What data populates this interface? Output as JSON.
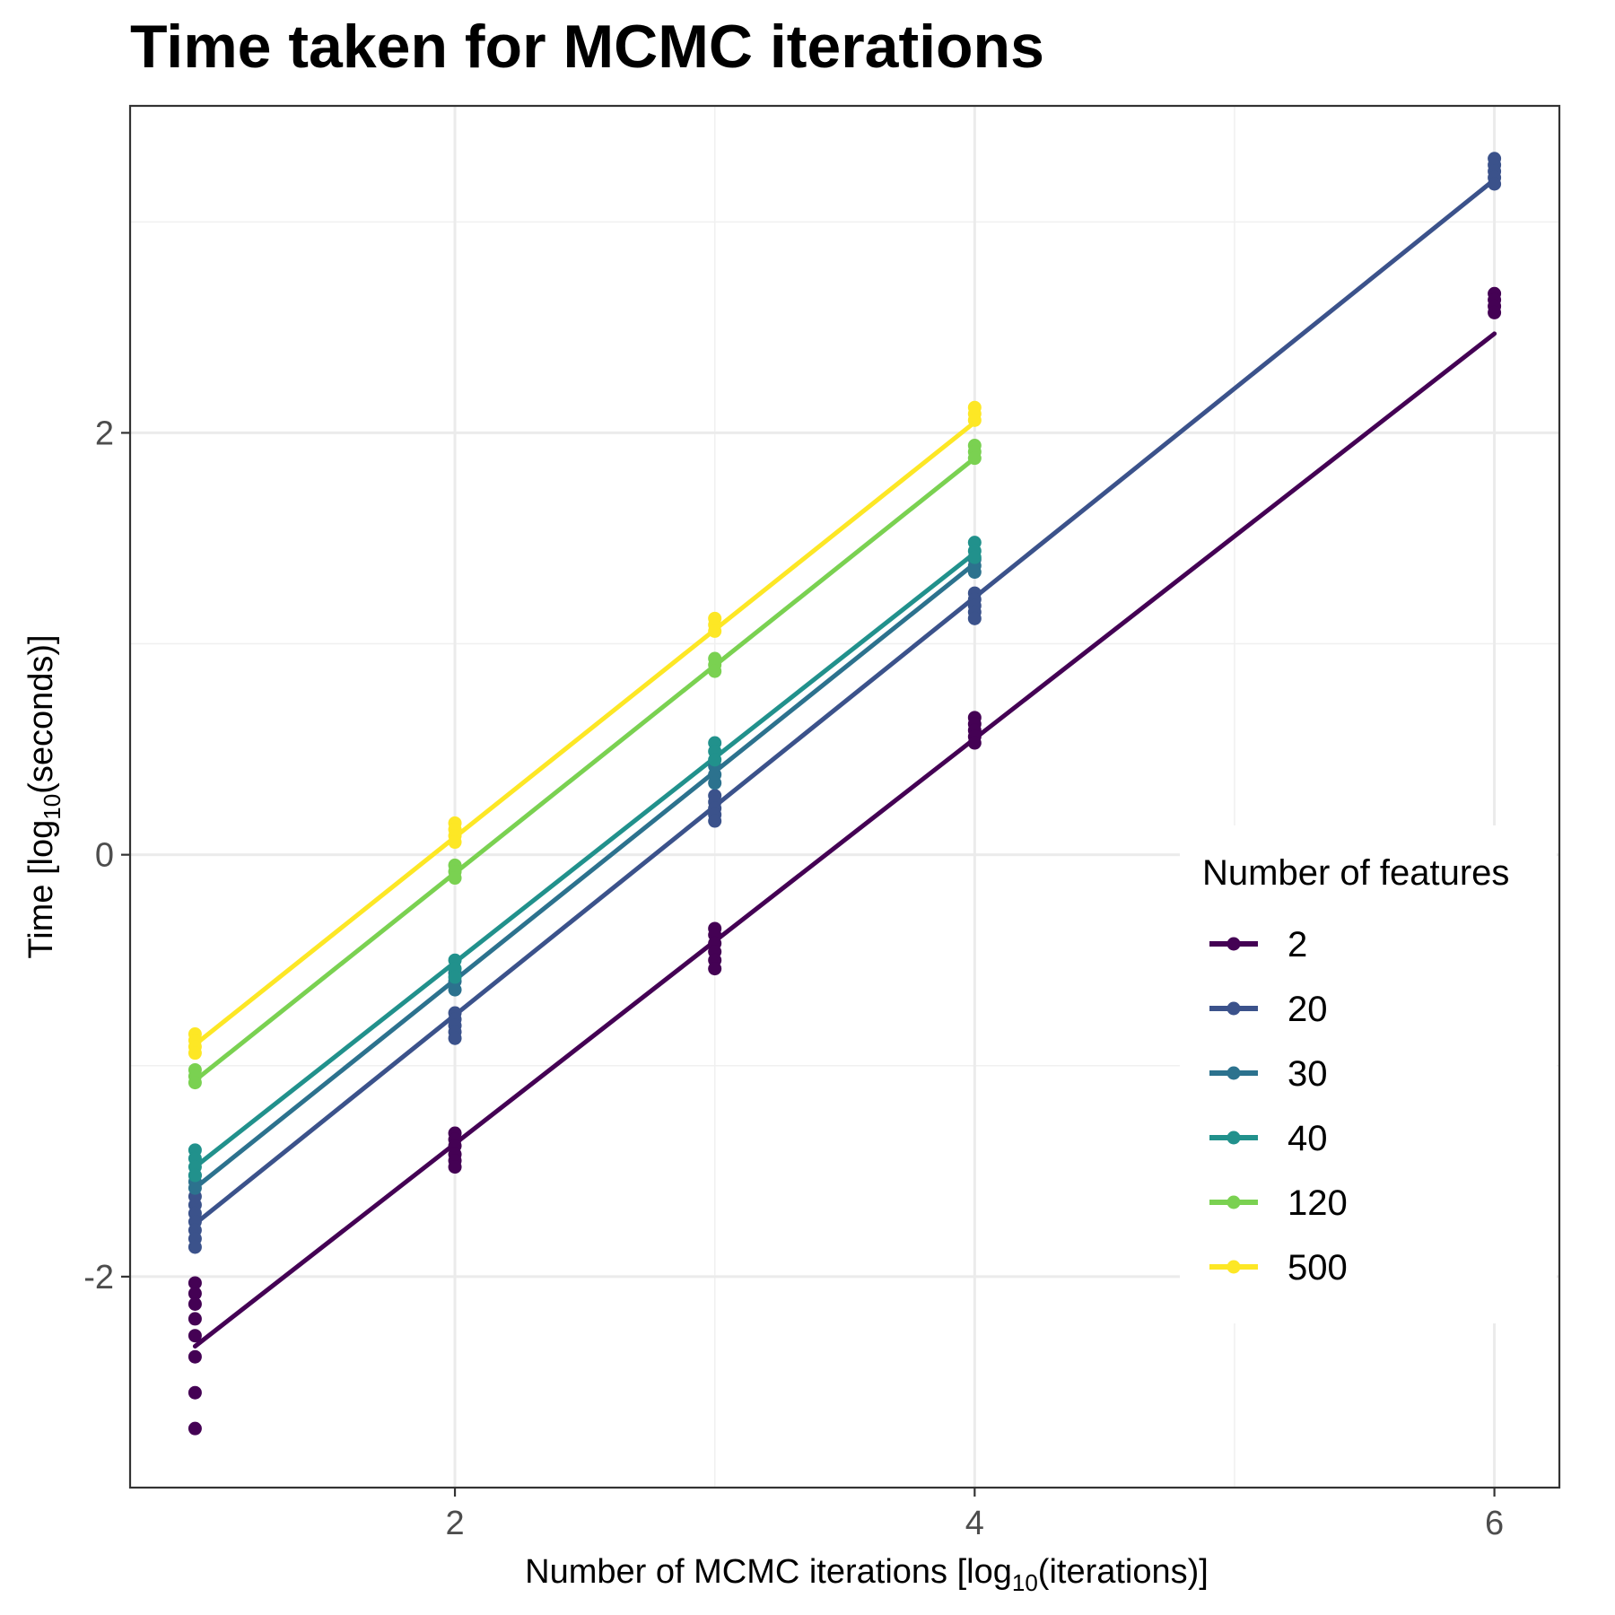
{
  "chart_data": {
    "type": "line",
    "title": "Time taken for MCMC iterations",
    "xlabel": {
      "prefix": "Number of MCMC iterations [log",
      "sub": "10",
      "suffix": "(iterations)]"
    },
    "ylabel": {
      "prefix": "Time [log",
      "sub": "10",
      "suffix": "(seconds)]"
    },
    "xlim": [
      0.75,
      6.25
    ],
    "ylim": [
      -3.0,
      3.55
    ],
    "x_ticks": [
      2,
      4,
      6
    ],
    "y_ticks": [
      -2,
      0,
      2
    ],
    "x_minor_ticks": [
      3,
      5
    ],
    "y_minor_ticks": [
      -1,
      1,
      3
    ],
    "grid": true,
    "legend_title": "Number of features",
    "legend_position": "right-inside",
    "series": [
      {
        "name": "2",
        "color": "#440154",
        "line": [
          [
            1,
            -2.33
          ],
          [
            6,
            2.47
          ]
        ],
        "points": [
          [
            1,
            -2.03
          ],
          [
            1,
            -2.08
          ],
          [
            1,
            -2.13
          ],
          [
            1,
            -2.2
          ],
          [
            1,
            -2.28
          ],
          [
            1,
            -2.38
          ],
          [
            1,
            -2.55
          ],
          [
            1,
            -2.72
          ],
          [
            2,
            -1.32
          ],
          [
            2,
            -1.35
          ],
          [
            2,
            -1.38
          ],
          [
            2,
            -1.42
          ],
          [
            2,
            -1.45
          ],
          [
            2,
            -1.48
          ],
          [
            3,
            -0.35
          ],
          [
            3,
            -0.38
          ],
          [
            3,
            -0.42
          ],
          [
            3,
            -0.46
          ],
          [
            3,
            -0.5
          ],
          [
            3,
            -0.54
          ],
          [
            4,
            0.65
          ],
          [
            4,
            0.62
          ],
          [
            4,
            0.59
          ],
          [
            4,
            0.56
          ],
          [
            4,
            0.53
          ],
          [
            6,
            2.66
          ],
          [
            6,
            2.63
          ],
          [
            6,
            2.6
          ],
          [
            6,
            2.57
          ]
        ]
      },
      {
        "name": "20",
        "color": "#3b528b",
        "line": [
          [
            1,
            -1.75
          ],
          [
            6,
            3.2
          ]
        ],
        "points": [
          [
            1,
            -1.62
          ],
          [
            1,
            -1.66
          ],
          [
            1,
            -1.7
          ],
          [
            1,
            -1.74
          ],
          [
            1,
            -1.78
          ],
          [
            1,
            -1.82
          ],
          [
            1,
            -1.86
          ],
          [
            2,
            -0.75
          ],
          [
            2,
            -0.78
          ],
          [
            2,
            -0.81
          ],
          [
            2,
            -0.84
          ],
          [
            2,
            -0.87
          ],
          [
            3,
            0.28
          ],
          [
            3,
            0.25
          ],
          [
            3,
            0.22
          ],
          [
            3,
            0.19
          ],
          [
            3,
            0.16
          ],
          [
            4,
            1.24
          ],
          [
            4,
            1.21
          ],
          [
            4,
            1.18
          ],
          [
            4,
            1.15
          ],
          [
            4,
            1.12
          ],
          [
            6,
            3.3
          ],
          [
            6,
            3.27
          ],
          [
            6,
            3.24
          ],
          [
            6,
            3.21
          ],
          [
            6,
            3.18
          ]
        ]
      },
      {
        "name": "30",
        "color": "#2c728e",
        "line": [
          [
            1,
            -1.58
          ],
          [
            4,
            1.38
          ]
        ],
        "points": [
          [
            1,
            -1.52
          ],
          [
            1,
            -1.55
          ],
          [
            1,
            -1.58
          ],
          [
            2,
            -0.56
          ],
          [
            2,
            -0.6
          ],
          [
            2,
            -0.64
          ],
          [
            3,
            0.42
          ],
          [
            3,
            0.38
          ],
          [
            3,
            0.34
          ],
          [
            4,
            1.4
          ],
          [
            4,
            1.37
          ],
          [
            4,
            1.34
          ]
        ]
      },
      {
        "name": "40",
        "color": "#21918c",
        "line": [
          [
            1,
            -1.48
          ],
          [
            4,
            1.43
          ]
        ],
        "points": [
          [
            1,
            -1.4
          ],
          [
            1,
            -1.44
          ],
          [
            1,
            -1.48
          ],
          [
            1,
            -1.52
          ],
          [
            2,
            -0.5
          ],
          [
            2,
            -0.54
          ],
          [
            2,
            -0.58
          ],
          [
            3,
            0.53
          ],
          [
            3,
            0.49
          ],
          [
            3,
            0.45
          ],
          [
            4,
            1.48
          ],
          [
            4,
            1.44
          ],
          [
            4,
            1.41
          ]
        ]
      },
      {
        "name": "120",
        "color": "#7ad151",
        "line": [
          [
            1,
            -1.07
          ],
          [
            4,
            1.88
          ]
        ],
        "points": [
          [
            1,
            -1.02
          ],
          [
            1,
            -1.05
          ],
          [
            1,
            -1.08
          ],
          [
            2,
            -0.05
          ],
          [
            2,
            -0.08
          ],
          [
            2,
            -0.11
          ],
          [
            3,
            0.93
          ],
          [
            3,
            0.9
          ],
          [
            3,
            0.87
          ],
          [
            4,
            1.94
          ],
          [
            4,
            1.91
          ],
          [
            4,
            1.88
          ]
        ]
      },
      {
        "name": "500",
        "color": "#fde725",
        "line": [
          [
            1,
            -0.9
          ],
          [
            4,
            2.05
          ]
        ],
        "points": [
          [
            1,
            -0.85
          ],
          [
            1,
            -0.88
          ],
          [
            1,
            -0.91
          ],
          [
            1,
            -0.94
          ],
          [
            2,
            0.15
          ],
          [
            2,
            0.12
          ],
          [
            2,
            0.09
          ],
          [
            2,
            0.06
          ],
          [
            3,
            1.12
          ],
          [
            3,
            1.09
          ],
          [
            3,
            1.06
          ],
          [
            4,
            2.12
          ],
          [
            4,
            2.09
          ],
          [
            4,
            2.06
          ]
        ]
      }
    ]
  }
}
